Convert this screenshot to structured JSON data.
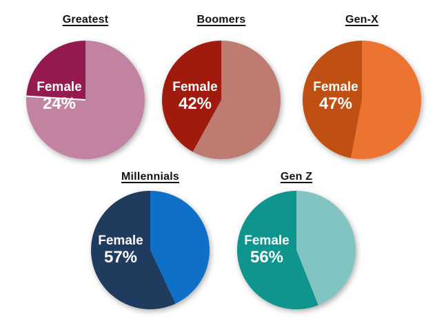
{
  "page": {
    "background": "#ffffff",
    "description": "Five pie charts showing female share by generation"
  },
  "chart_data": [
    {
      "type": "pie",
      "title": "Greatest",
      "female_pct": 24,
      "other_pct": 76,
      "female_color": "#951A50",
      "other_color": "#C283A2",
      "label_line1": "Female",
      "label_line2": "24%",
      "legend": "none",
      "label_position": "left-center"
    },
    {
      "type": "pie",
      "title": "Boomers",
      "female_pct": 42,
      "other_pct": 58,
      "female_color": "#A01B0E",
      "other_color": "#BD7B72",
      "label_line1": "Female",
      "label_line2": "42%",
      "legend": "none",
      "label_position": "left-center"
    },
    {
      "type": "pie",
      "title": "Gen-X",
      "female_pct": 47,
      "other_pct": 53,
      "female_color": "#C04F14",
      "other_color": "#ED7430",
      "label_line1": "Female",
      "label_line2": "47%",
      "legend": "none",
      "label_position": "left-center"
    },
    {
      "type": "pie",
      "title": "Millennials",
      "female_pct": 57,
      "other_pct": 43,
      "female_color": "#1F3B5D",
      "other_color": "#0F70C8",
      "label_line1": "Female",
      "label_line2": "57%",
      "legend": "none",
      "label_position": "left-center"
    },
    {
      "type": "pie",
      "title": "Gen Z",
      "female_pct": 56,
      "other_pct": 44,
      "female_color": "#0F948E",
      "other_color": "#82C4C1",
      "label_line1": "Female",
      "label_line2": "56%",
      "legend": "none",
      "label_position": "left-center"
    }
  ]
}
